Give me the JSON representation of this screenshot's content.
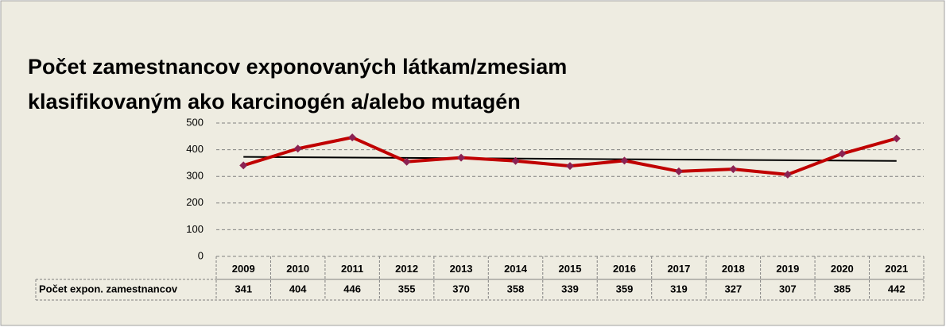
{
  "chart_data": {
    "type": "line",
    "title_lines": [
      "Počet zamestnancov exponovaných látkam/zmesiam",
      "klasifikovaným ako karcinogén a/alebo mutagén"
    ],
    "categories": [
      "2009",
      "2010",
      "2011",
      "2012",
      "2013",
      "2014",
      "2015",
      "2016",
      "2017",
      "2018",
      "2019",
      "2020",
      "2021"
    ],
    "series": [
      {
        "name": "Počet expon. zamestnancov",
        "color": "#c00000",
        "marker_color": "#8b2252",
        "values": [
          341,
          404,
          446,
          355,
          370,
          358,
          339,
          359,
          319,
          327,
          307,
          385,
          442
        ]
      }
    ],
    "ylim": [
      0,
      500
    ],
    "yticks": [
      0,
      100,
      200,
      300,
      400,
      500
    ],
    "grid": true,
    "trendline": true,
    "trendline_color": "#000000",
    "data_table": true
  }
}
